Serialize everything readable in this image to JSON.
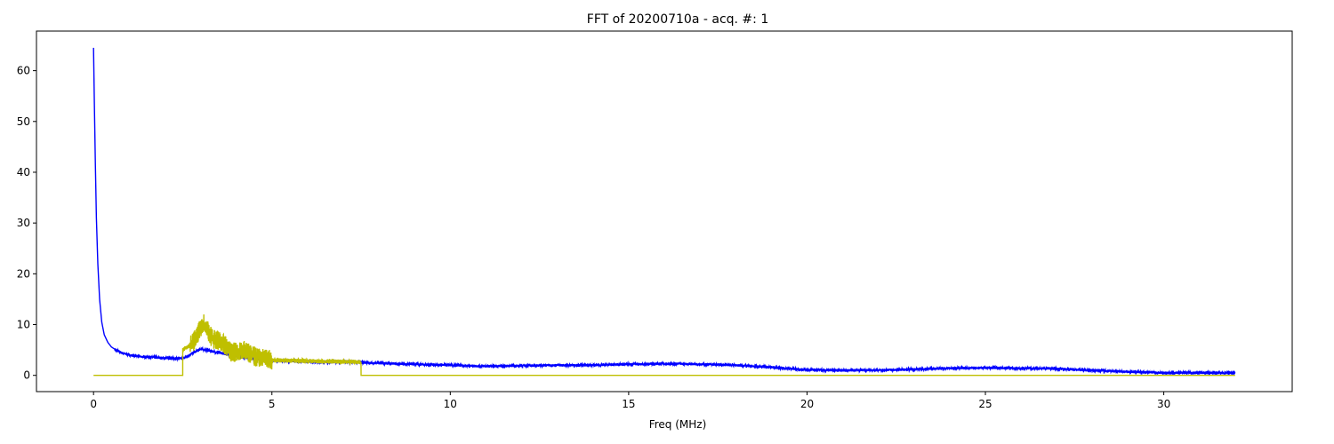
{
  "chart_data": {
    "type": "line",
    "title": "FFT of 20200710a - acq. #: 1",
    "xlabel": "Freq (MHz)",
    "ylabel": "",
    "xlim": [
      -1.6,
      33.6
    ],
    "ylim": [
      -3.2,
      67.8
    ],
    "xticks": [
      0,
      5,
      10,
      15,
      20,
      25,
      30
    ],
    "yticks": [
      0,
      10,
      20,
      30,
      40,
      50,
      60
    ],
    "grid": false,
    "legend": "none",
    "series": [
      {
        "color": "#0000ff",
        "x": [
          0,
          0.02,
          0.05,
          0.08,
          0.12,
          0.17,
          0.23,
          0.3,
          0.4,
          0.5,
          0.65,
          0.8,
          1.0,
          1.3,
          1.6,
          2.0,
          2.5,
          3.0,
          3.5,
          4.0,
          4.5,
          5.0,
          5.5,
          6.0,
          6.5,
          7.0,
          7.5,
          8.0,
          9.0,
          10.0,
          11.0,
          12.0,
          13.0,
          14.0,
          15.0,
          16.0,
          17.0,
          18.0,
          19.0,
          20.0,
          21.0,
          22.0,
          23.0,
          24.0,
          25.0,
          26.0,
          27.0,
          28.0,
          29.0,
          30.0,
          31.0,
          32.0
        ],
        "y": [
          64.5,
          55.0,
          42.0,
          31.0,
          22.0,
          15.0,
          10.5,
          8.0,
          6.5,
          5.6,
          4.9,
          4.4,
          4.0,
          3.7,
          3.6,
          3.4,
          3.3,
          5.2,
          4.5,
          3.8,
          3.2,
          2.9,
          2.8,
          2.7,
          2.6,
          2.6,
          2.5,
          2.4,
          2.2,
          2.0,
          1.8,
          1.9,
          2.0,
          2.0,
          2.2,
          2.3,
          2.2,
          2.0,
          1.6,
          1.1,
          1.0,
          1.0,
          1.2,
          1.4,
          1.5,
          1.4,
          1.3,
          1.0,
          0.7,
          0.5,
          0.5,
          0.5
        ],
        "noise": 0.25
      },
      {
        "color": "#bfbf00",
        "x": [
          0,
          2.5,
          2.5,
          2.8,
          3.0,
          3.1,
          3.3,
          3.6,
          3.9,
          4.2,
          4.5,
          4.8,
          5.0,
          6.0,
          7.0,
          7.5,
          7.5,
          32.0
        ],
        "y": [
          0,
          0,
          5.0,
          6.5,
          9.5,
          10.5,
          7.5,
          6.5,
          4.5,
          5.0,
          3.8,
          3.2,
          3.0,
          2.8,
          2.7,
          2.6,
          0,
          0
        ],
        "noise_range": [
          2.5,
          7.5
        ],
        "noise": 1.2
      }
    ]
  }
}
